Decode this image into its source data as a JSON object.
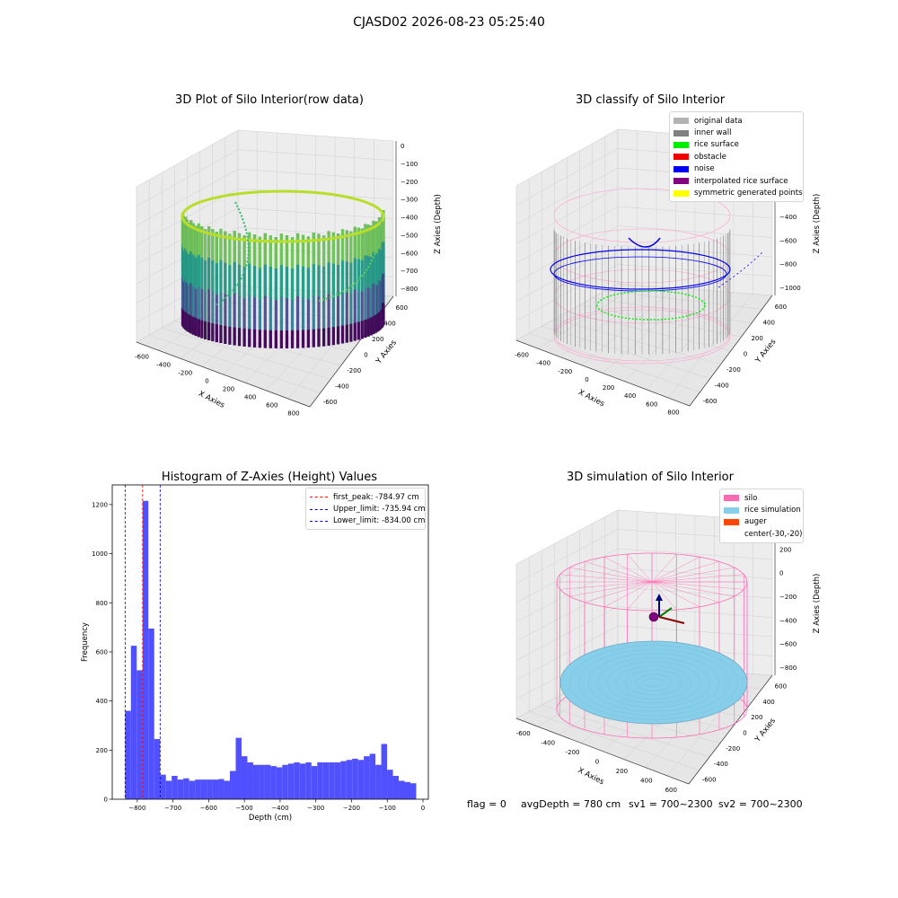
{
  "suptitle": "CJASD02 2026-08-23 05:25:40",
  "panels": {
    "raw": {
      "title": "3D Plot of Silo Interior(row data)",
      "xlabel": "X Axies",
      "ylabel": "Y Axies",
      "zlabel": "Z Axies (Depth)",
      "xticks": [
        "-600",
        "-400",
        "-200",
        "0",
        "200",
        "400",
        "600",
        "800"
      ],
      "yticks": [
        "-600",
        "-400",
        "-200",
        "0",
        "200",
        "400",
        "600"
      ],
      "zticks": [
        "0",
        "−100",
        "−200",
        "−300",
        "−400",
        "−500",
        "−600",
        "−700",
        "−800"
      ]
    },
    "classify": {
      "title": "3D classify of Silo Interior",
      "xlabel": "X Axies",
      "ylabel": "Y Axies",
      "zlabel": "Z Axies (Depth)",
      "xticks": [
        "-600",
        "-400",
        "-200",
        "0",
        "200",
        "400",
        "600",
        "800"
      ],
      "yticks": [
        "-600",
        "-400",
        "-200",
        "0",
        "200",
        "400",
        "600"
      ],
      "zticks": [
        "200",
        "0",
        "−200",
        "−400",
        "−600",
        "−800",
        "−1000"
      ],
      "legend": [
        {
          "label": "original data",
          "color": "#b3b3b3"
        },
        {
          "label": "inner wall",
          "color": "#808080"
        },
        {
          "label": "rice surface",
          "color": "#00ee00"
        },
        {
          "label": "obstacle",
          "color": "#ee0000"
        },
        {
          "label": "noise",
          "color": "#0000ee"
        },
        {
          "label": "interpolated rice surface",
          "color": "#800080"
        },
        {
          "label": "symmetric generated points",
          "color": "#ffff00"
        }
      ]
    },
    "simulation": {
      "title": "3D simulation of Silo Interior",
      "xlabel": "X Axies",
      "ylabel": "Y Axies",
      "zlabel": "Z Axies (Depth)",
      "xticks": [
        "-600",
        "-400",
        "-200",
        "0",
        "200",
        "400",
        "600"
      ],
      "yticks": [
        "-600",
        "-400",
        "-200",
        "0",
        "200",
        "400",
        "600"
      ],
      "zticks": [
        "400",
        "200",
        "0",
        "−200",
        "−400",
        "−600",
        "−800"
      ],
      "legend": [
        {
          "label": "silo",
          "color": "#ff69b4"
        },
        {
          "label": "rice simulation",
          "color": "#87ceeb"
        },
        {
          "label": "auger",
          "color": "#ff4500"
        },
        {
          "label": "center(-30,-20)",
          "color": ""
        }
      ]
    }
  },
  "chart_data": [
    {
      "type": "bar",
      "title": "Histogram of Z-Axies (Height) Values",
      "xlabel": "Depth (cm)",
      "ylabel": "Frequency",
      "xlim": [
        -870,
        15
      ],
      "ylim": [
        0,
        1280
      ],
      "xticks": [
        -800,
        -700,
        -600,
        -500,
        -400,
        -300,
        -200,
        -100,
        0
      ],
      "yticks": [
        0,
        200,
        400,
        600,
        800,
        1000,
        1200
      ],
      "bar_color": "#5050ff",
      "bins": {
        "start": -834,
        "width": 16.3,
        "values": [
          360,
          625,
          525,
          1215,
          695,
          245,
          100,
          75,
          95,
          80,
          85,
          75,
          80,
          80,
          80,
          80,
          82,
          75,
          115,
          250,
          175,
          150,
          140,
          140,
          140,
          135,
          130,
          140,
          145,
          150,
          145,
          150,
          135,
          150,
          150,
          150,
          150,
          155,
          160,
          165,
          160,
          175,
          185,
          140,
          225,
          120,
          95,
          75,
          70,
          65
        ]
      },
      "lines": [
        {
          "label": "first_peak: -784.97 cm",
          "x": -784.97,
          "color": "#ff0000"
        },
        {
          "label": "Upper_limit: -735.94 cm",
          "x": -735.94,
          "color": "#0000cc"
        },
        {
          "label": "Lower_limit: -834.00 cm",
          "x": -834.0,
          "color": "#0000cc"
        }
      ],
      "legend_position": "top-right"
    }
  ],
  "status": {
    "flag": "flag = 0",
    "avg": "avgDepth = 780 cm",
    "sv1": "sv1 = 700~2300",
    "sv2": "sv2 = 700~2300"
  }
}
